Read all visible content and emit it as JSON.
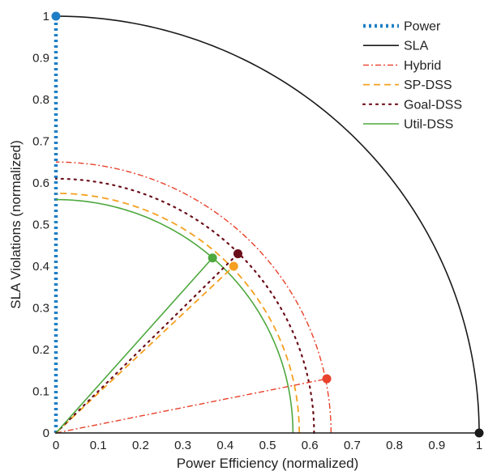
{
  "chart_data": {
    "type": "line",
    "title": "",
    "xlabel": "Power Efficiency (normalized)",
    "ylabel": "SLA Violations (normalized)",
    "xlim": [
      0,
      1
    ],
    "ylim": [
      0,
      1
    ],
    "xticks": [
      "0",
      "0.1",
      "0.2",
      "0.3",
      "0.4",
      "0.5",
      "0.6",
      "0.7",
      "0.8",
      "0.9",
      "1"
    ],
    "yticks": [
      "0",
      "0.1",
      "0.2",
      "0.3",
      "0.4",
      "0.5",
      "0.6",
      "0.7",
      "0.8",
      "0.9",
      "1"
    ],
    "grid": false,
    "legend_position": "top-right",
    "series": [
      {
        "name": "Power",
        "radius": 1.0,
        "point": [
          0.0,
          1.0
        ],
        "color": "#1f7fc6",
        "style": "dotted-thick"
      },
      {
        "name": "SLA",
        "radius": 1.0,
        "point": [
          1.0,
          0.0
        ],
        "color": "#1a1a1a",
        "style": "solid"
      },
      {
        "name": "Hybrid",
        "radius": 0.65,
        "point": [
          0.64,
          0.13
        ],
        "color": "#e8412c",
        "style": "dash-dot"
      },
      {
        "name": "SP-DSS",
        "radius": 0.575,
        "point": [
          0.42,
          0.4
        ],
        "color": "#f5a020",
        "style": "dashed"
      },
      {
        "name": "Goal-DSS",
        "radius": 0.61,
        "point": [
          0.43,
          0.43
        ],
        "color": "#6b0f1a",
        "style": "dotted"
      },
      {
        "name": "Util-DSS",
        "radius": 0.56,
        "point": [
          0.37,
          0.42
        ],
        "color": "#4ea83e",
        "style": "solid"
      }
    ]
  }
}
